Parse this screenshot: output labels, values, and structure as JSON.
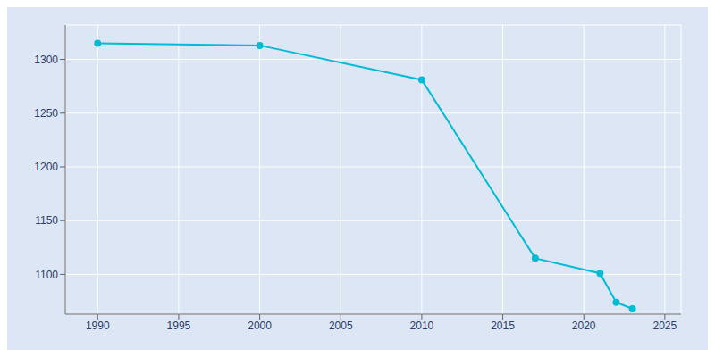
{
  "chart_data": {
    "type": "line",
    "x": [
      1990,
      2000,
      2010,
      2017,
      2021,
      2022,
      2023
    ],
    "values": [
      1315,
      1313,
      1281,
      1115,
      1101,
      1074,
      1068
    ],
    "color": "#00bcd4",
    "marker": "circle",
    "xlim": [
      1988,
      2026
    ],
    "ylim": [
      1063,
      1332
    ],
    "xticks": [
      1990,
      1995,
      2000,
      2005,
      2010,
      2015,
      2020,
      2025
    ],
    "yticks": [
      1100,
      1150,
      1200,
      1250,
      1300
    ],
    "grid": true
  }
}
